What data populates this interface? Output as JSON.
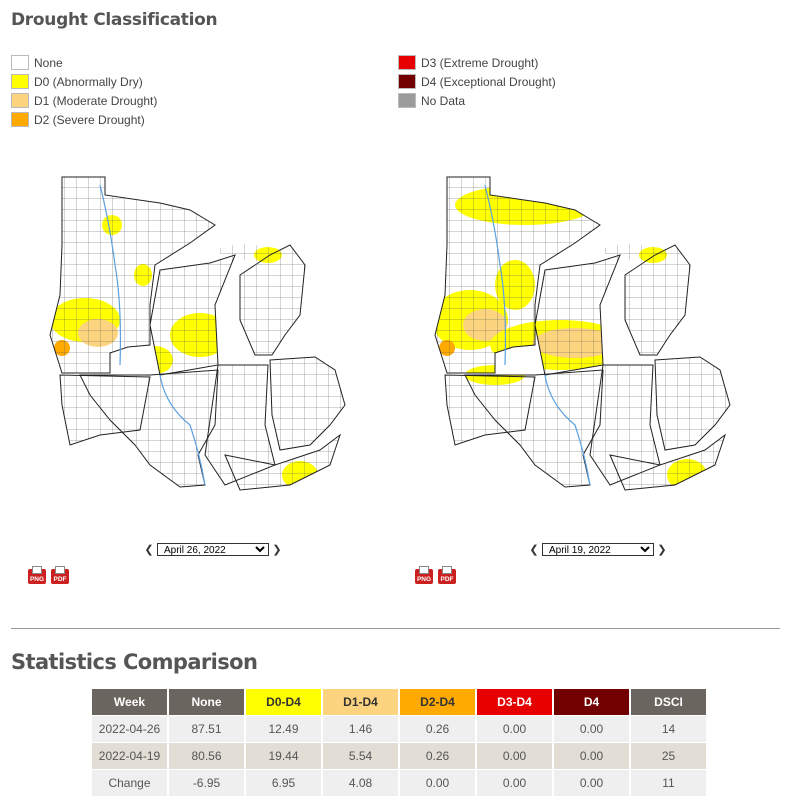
{
  "header": {
    "title": "Drought Classification"
  },
  "legend": {
    "left": [
      {
        "label": "None",
        "color": "#ffffff"
      },
      {
        "label": "D0 (Abnormally Dry)",
        "color": "#ffff00"
      },
      {
        "label": "D1 (Moderate Drought)",
        "color": "#fcd37f"
      },
      {
        "label": "D2 (Severe Drought)",
        "color": "#ffaa00"
      }
    ],
    "right": [
      {
        "label": "D3 (Extreme Drought)",
        "color": "#e60000"
      },
      {
        "label": "D4 (Exceptional Drought)",
        "color": "#730000"
      },
      {
        "label": "No Data",
        "color": "#9b9b9b"
      }
    ]
  },
  "maps": {
    "left": {
      "date": "April 26, 2022",
      "options": [
        "April 26, 2022"
      ]
    },
    "right": {
      "date": "April 19, 2022",
      "options": [
        "April 19, 2022"
      ]
    }
  },
  "downloads": {
    "png": "PNG",
    "pdf": "PDF"
  },
  "stats": {
    "title": "Statistics Comparison",
    "headers": [
      "Week",
      "None",
      "D0-D4",
      "D1-D4",
      "D2-D4",
      "D3-D4",
      "D4",
      "DSCI"
    ],
    "header_colors": [
      "#6b6560",
      "#6b6560",
      "#ffff00",
      "#fcd37f",
      "#ffaa00",
      "#e60000",
      "#730000",
      "#6b6560"
    ],
    "header_text_colors": [
      "#ffffff",
      "#ffffff",
      "#333333",
      "#333333",
      "#333333",
      "#ffffff",
      "#ffffff",
      "#ffffff"
    ],
    "rows": [
      [
        "2022-04-26",
        "87.51",
        "12.49",
        "1.46",
        "0.26",
        "0.00",
        "0.00",
        "14"
      ],
      [
        "2022-04-19",
        "80.56",
        "19.44",
        "5.54",
        "0.26",
        "0.00",
        "0.00",
        "25"
      ],
      [
        "Change",
        "-6.95",
        "6.95",
        "4.08",
        "0.00",
        "0.00",
        "0.00",
        "11"
      ]
    ]
  }
}
